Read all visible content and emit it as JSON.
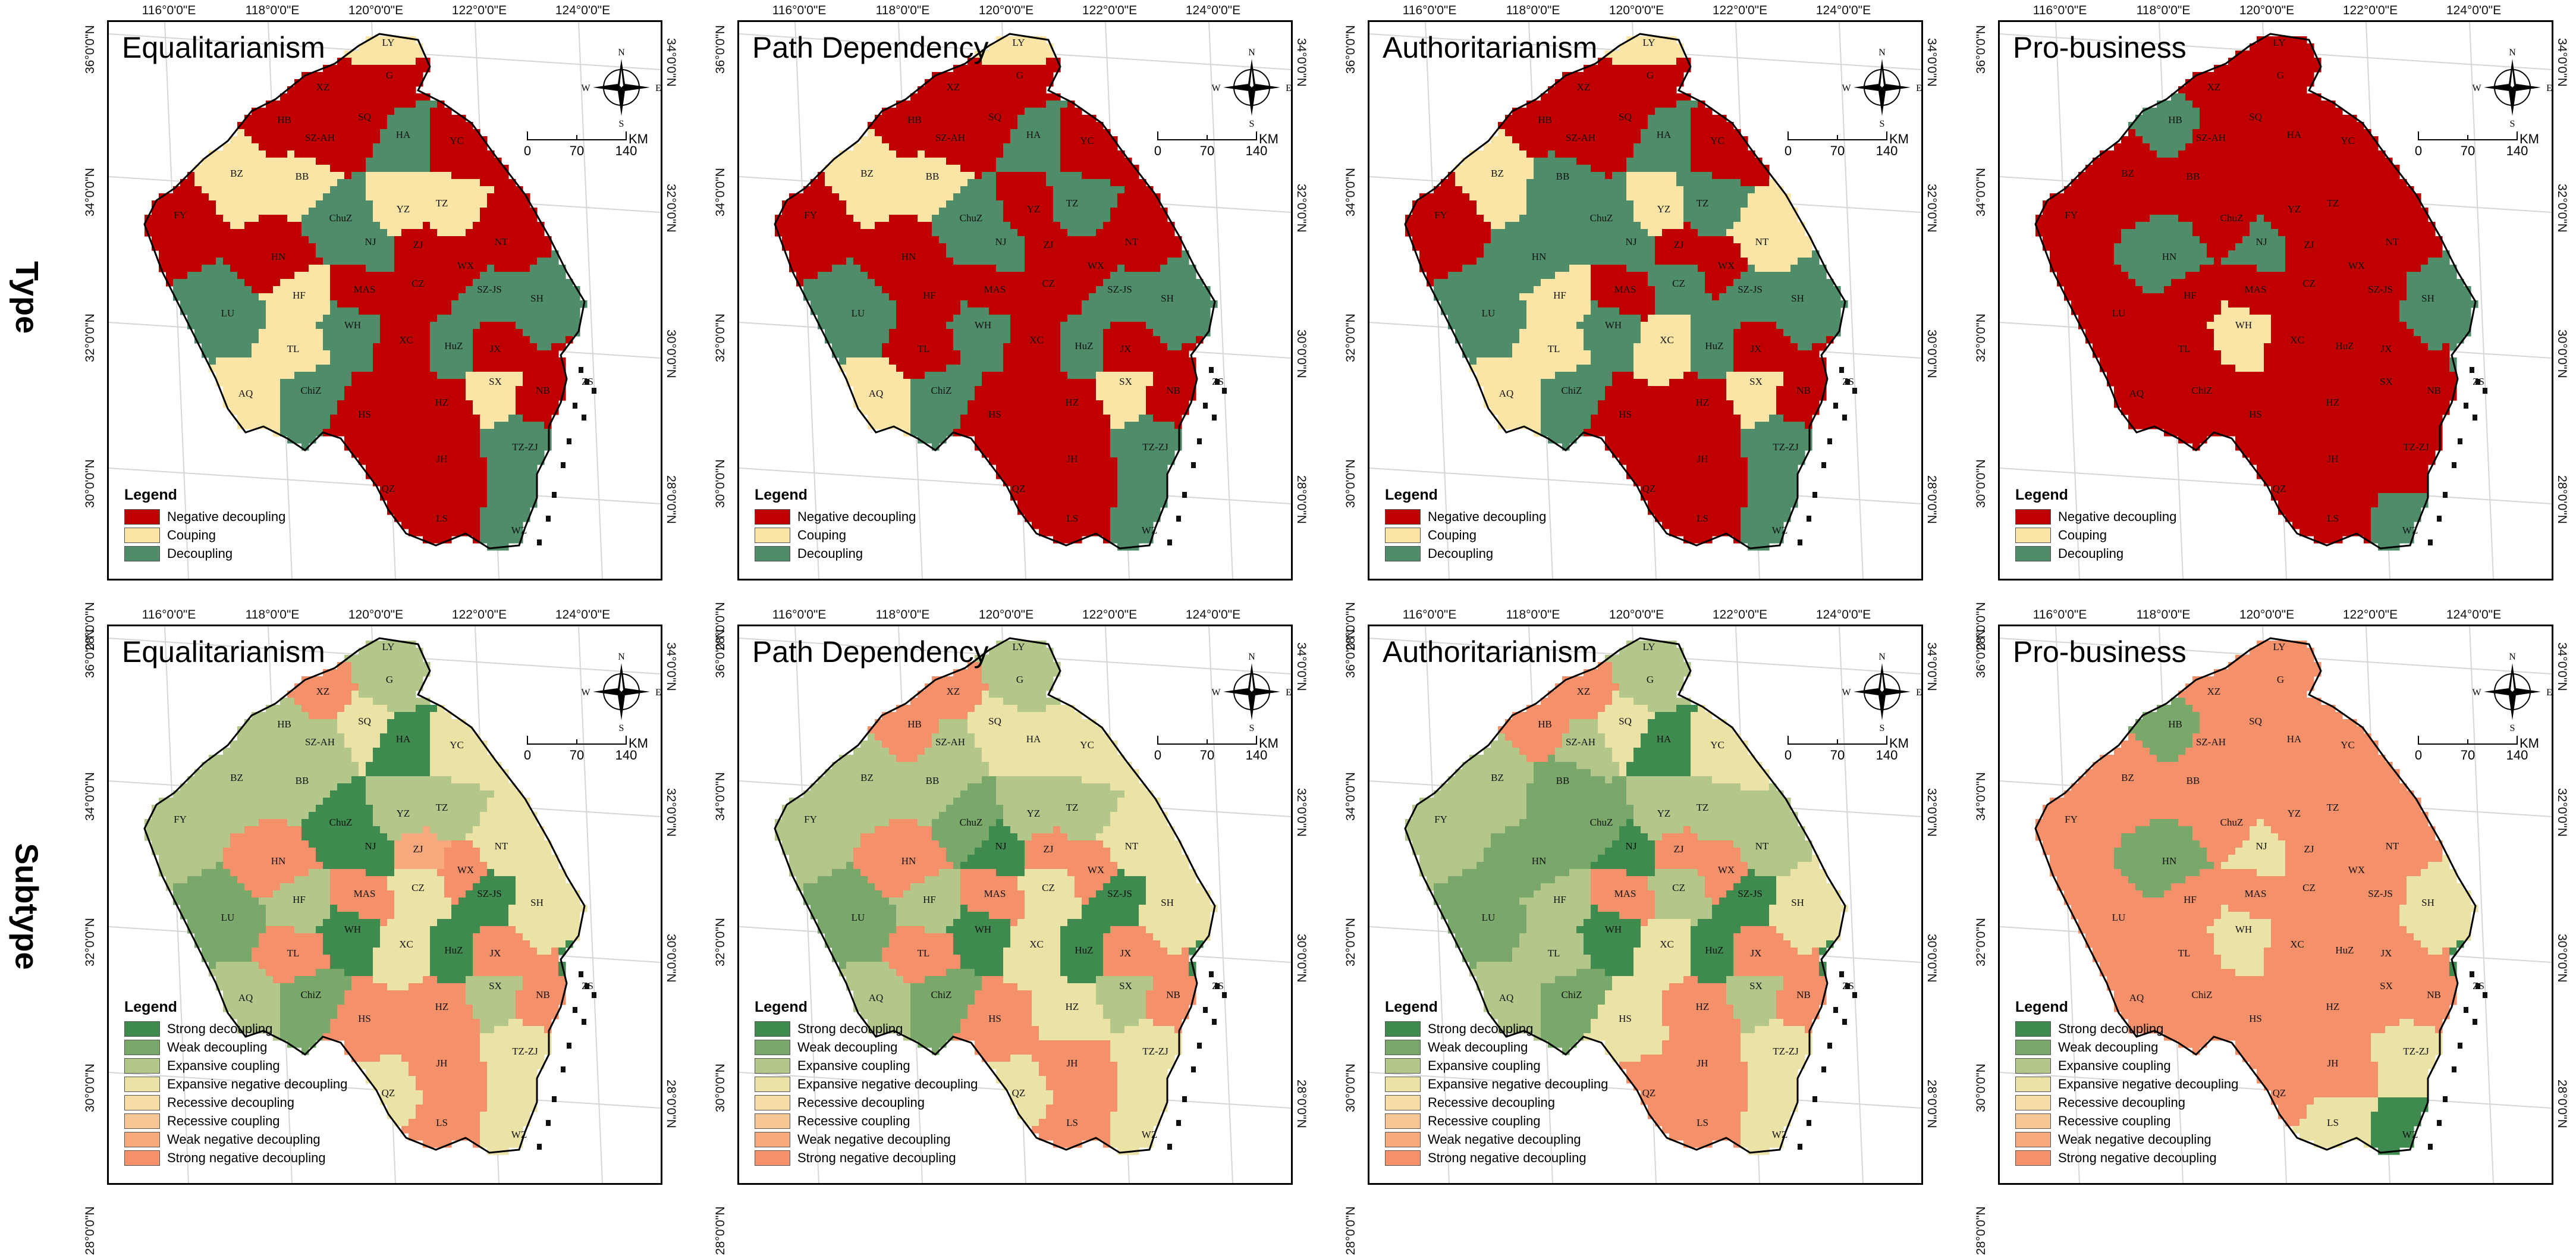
{
  "rows": [
    {
      "label": "Type",
      "legend": {
        "title": "Legend",
        "items": [
          {
            "label": "Negative decoupling",
            "color": "#c00000"
          },
          {
            "label": "Couping",
            "color": "#fbe5a6"
          },
          {
            "label": "Decoupling",
            "color": "#4e8c6a"
          }
        ]
      }
    },
    {
      "label": "Subtype",
      "legend": {
        "title": "Legend",
        "items": [
          {
            "label": "Strong decoupling",
            "color": "#3f8a4f"
          },
          {
            "label": "Weak decoupling",
            "color": "#79a86a"
          },
          {
            "label": "Expansive coupling",
            "color": "#b3c78b"
          },
          {
            "label": "Expansive negative decoupling",
            "color": "#ebe3a6"
          },
          {
            "label": "Recessive decoupling",
            "color": "#f8dca6"
          },
          {
            "label": "Recessive coupling",
            "color": "#f8c595"
          },
          {
            "label": "Weak negative decoupling",
            "color": "#f7a87c"
          },
          {
            "label": "Strong negative decoupling",
            "color": "#f4906a"
          }
        ]
      }
    }
  ],
  "scenarios": [
    "Equalitarianism",
    "Path Dependency",
    "Authoritarianism",
    "Pro-business"
  ],
  "lon_ticks": [
    "116°0'0\"E",
    "118°0'0\"E",
    "120°0'0\"E",
    "122°0'0\"E",
    "124°0'0\"E"
  ],
  "lat_ticks_left": [
    "36°0'0\"N",
    "34°0'0\"N",
    "32°0'0\"N",
    "30°0'0\"N",
    "28°0'0\"N"
  ],
  "lat_ticks_right": [
    "34°0'0\"N",
    "32°0'0\"N",
    "30°0'0\"N",
    "28°0'0\"N"
  ],
  "compass": {
    "n": "N",
    "s": "S",
    "e": "E",
    "w": "W"
  },
  "scalebar": {
    "labels": [
      "0",
      "70",
      "140"
    ],
    "unit": "KM"
  },
  "cities": [
    "LY",
    "G",
    "XZ",
    "SQ",
    "HA",
    "YC",
    "HB",
    "SZ-AH",
    "BZ",
    "BB",
    "FY",
    "ChuZ",
    "YZ",
    "TZ",
    "NT",
    "HN",
    "NJ",
    "ZJ",
    "WX",
    "SZ-JS",
    "HF",
    "MAS",
    "CZ",
    "SH",
    "LU",
    "WH",
    "XC",
    "HuZ",
    "JX",
    "TL",
    "ZS",
    "AQ",
    "ChiZ",
    "HS",
    "HZ",
    "SX",
    "NB",
    "JH",
    "TZ-ZJ",
    "QZ",
    "LS",
    "WZ"
  ],
  "colors": {
    "ocean_island": "#111111",
    "boundary": "#555555",
    "province_boundary": "#000000",
    "frame": "#000000"
  },
  "maps": {
    "type": [
      {
        "LY": "C",
        "G": "N",
        "XZ": "N",
        "SQ": "N",
        "HA": "D",
        "YC": "N",
        "HB": "N",
        "SZ-AH": "N",
        "BZ": "C",
        "BB": "C",
        "FY": "N",
        "ChuZ": "D",
        "YZ": "C",
        "TZ": "C",
        "NT": "N",
        "HN": "N",
        "NJ": "D",
        "ZJ": "N",
        "WX": "N",
        "SZ-JS": "D",
        "HF": "C",
        "MAS": "N",
        "CZ": "N",
        "SH": "D",
        "LU": "D",
        "WH": "D",
        "XC": "N",
        "HuZ": "D",
        "JX": "N",
        "TL": "C",
        "ZS": "N",
        "AQ": "C",
        "ChiZ": "D",
        "HS": "N",
        "HZ": "N",
        "SX": "C",
        "NB": "N",
        "JH": "N",
        "TZ-ZJ": "D",
        "QZ": "N",
        "LS": "N",
        "WZ": "D"
      },
      {
        "LY": "C",
        "G": "N",
        "XZ": "N",
        "SQ": "N",
        "HA": "D",
        "YC": "N",
        "HB": "N",
        "SZ-AH": "N",
        "BZ": "C",
        "BB": "C",
        "FY": "N",
        "ChuZ": "D",
        "YZ": "N",
        "TZ": "D",
        "NT": "N",
        "HN": "N",
        "NJ": "D",
        "ZJ": "N",
        "WX": "N",
        "SZ-JS": "D",
        "HF": "N",
        "MAS": "N",
        "CZ": "N",
        "SH": "D",
        "LU": "D",
        "WH": "D",
        "XC": "N",
        "HuZ": "D",
        "JX": "N",
        "TL": "N",
        "ZS": "N",
        "AQ": "C",
        "ChiZ": "D",
        "HS": "N",
        "HZ": "N",
        "SX": "C",
        "NB": "N",
        "JH": "N",
        "TZ-ZJ": "D",
        "QZ": "N",
        "LS": "N",
        "WZ": "D"
      },
      {
        "LY": "C",
        "G": "N",
        "XZ": "N",
        "SQ": "N",
        "HA": "D",
        "YC": "N",
        "HB": "N",
        "SZ-AH": "N",
        "BZ": "C",
        "BB": "D",
        "FY": "N",
        "ChuZ": "D",
        "YZ": "C",
        "TZ": "D",
        "NT": "C",
        "HN": "D",
        "NJ": "D",
        "ZJ": "N",
        "WX": "N",
        "SZ-JS": "D",
        "HF": "C",
        "MAS": "N",
        "CZ": "D",
        "SH": "D",
        "LU": "D",
        "WH": "D",
        "XC": "C",
        "HuZ": "D",
        "JX": "N",
        "TL": "C",
        "ZS": "N",
        "AQ": "C",
        "ChiZ": "D",
        "HS": "N",
        "HZ": "N",
        "SX": "C",
        "NB": "N",
        "JH": "N",
        "TZ-ZJ": "D",
        "QZ": "N",
        "LS": "N",
        "WZ": "D"
      },
      {
        "LY": "N",
        "G": "N",
        "XZ": "N",
        "SQ": "N",
        "HA": "N",
        "YC": "N",
        "HB": "D",
        "SZ-AH": "N",
        "BZ": "N",
        "BB": "N",
        "FY": "N",
        "ChuZ": "N",
        "YZ": "N",
        "TZ": "N",
        "NT": "N",
        "HN": "D",
        "NJ": "D",
        "ZJ": "N",
        "WX": "N",
        "SZ-JS": "N",
        "HF": "N",
        "MAS": "N",
        "CZ": "N",
        "SH": "D",
        "LU": "N",
        "WH": "C",
        "XC": "N",
        "HuZ": "N",
        "JX": "N",
        "TL": "N",
        "ZS": "D",
        "AQ": "N",
        "ChiZ": "N",
        "HS": "N",
        "HZ": "N",
        "SX": "N",
        "NB": "N",
        "JH": "N",
        "TZ-ZJ": "N",
        "QZ": "N",
        "LS": "N",
        "WZ": "D"
      }
    ],
    "subtype": [
      {
        "LY": "EC",
        "G": "EC",
        "XZ": "SND",
        "SQ": "END",
        "HA": "SD",
        "YC": "END",
        "HB": "EC",
        "SZ-AH": "EC",
        "BZ": "EC",
        "BB": "EC",
        "FY": "EC",
        "ChuZ": "SD",
        "YZ": "EC",
        "TZ": "EC",
        "NT": "END",
        "HN": "SND",
        "NJ": "SD",
        "ZJ": "WND",
        "WX": "SND",
        "SZ-JS": "SD",
        "HF": "EC",
        "MAS": "SND",
        "CZ": "END",
        "SH": "END",
        "LU": "WD",
        "WH": "SD",
        "XC": "END",
        "HuZ": "SD",
        "JX": "SND",
        "TL": "SND",
        "ZS": "SD",
        "AQ": "EC",
        "ChiZ": "WD",
        "HS": "SND",
        "HZ": "SND",
        "SX": "EC",
        "NB": "SND",
        "JH": "SND",
        "TZ-ZJ": "END",
        "QZ": "END",
        "LS": "SND",
        "WZ": "END"
      },
      {
        "LY": "EC",
        "G": "EC",
        "XZ": "SND",
        "SQ": "END",
        "HA": "END",
        "YC": "END",
        "HB": "SND",
        "SZ-AH": "EC",
        "BZ": "EC",
        "BB": "EC",
        "FY": "EC",
        "ChuZ": "WD",
        "YZ": "EC",
        "TZ": "EC",
        "NT": "END",
        "HN": "SND",
        "NJ": "SD",
        "ZJ": "SND",
        "WX": "SND",
        "SZ-JS": "SD",
        "HF": "EC",
        "MAS": "SND",
        "CZ": "END",
        "SH": "END",
        "LU": "WD",
        "WH": "SD",
        "XC": "END",
        "HuZ": "SD",
        "JX": "SND",
        "TL": "SND",
        "ZS": "SD",
        "AQ": "EC",
        "ChiZ": "WD",
        "HS": "SND",
        "HZ": "END",
        "SX": "EC",
        "NB": "SND",
        "JH": "SND",
        "TZ-ZJ": "END",
        "QZ": "END",
        "LS": "SND",
        "WZ": "END"
      },
      {
        "LY": "EC",
        "G": "EC",
        "XZ": "SND",
        "SQ": "END",
        "HA": "SD",
        "YC": "END",
        "HB": "SND",
        "SZ-AH": "EC",
        "BZ": "EC",
        "BB": "WD",
        "FY": "EC",
        "ChuZ": "WD",
        "YZ": "EC",
        "TZ": "EC",
        "NT": "EC",
        "HN": "WD",
        "NJ": "SD",
        "ZJ": "SND",
        "WX": "SND",
        "SZ-JS": "SD",
        "HF": "EC",
        "MAS": "SND",
        "CZ": "EC",
        "SH": "END",
        "LU": "WD",
        "WH": "SD",
        "XC": "END",
        "HuZ": "SD",
        "JX": "SND",
        "TL": "EC",
        "ZS": "SD",
        "AQ": "EC",
        "ChiZ": "WD",
        "HS": "END",
        "HZ": "SND",
        "SX": "EC",
        "NB": "SND",
        "JH": "SND",
        "TZ-ZJ": "END",
        "QZ": "SND",
        "LS": "SND",
        "WZ": "END"
      },
      {
        "LY": "SND",
        "G": "SND",
        "XZ": "SND",
        "SQ": "SND",
        "HA": "SND",
        "YC": "SND",
        "HB": "WD",
        "SZ-AH": "SND",
        "BZ": "SND",
        "BB": "SND",
        "FY": "SND",
        "ChuZ": "SND",
        "YZ": "SND",
        "TZ": "SND",
        "NT": "SND",
        "HN": "WD",
        "NJ": "END",
        "ZJ": "SND",
        "WX": "SND",
        "SZ-JS": "SND",
        "HF": "SND",
        "MAS": "SND",
        "CZ": "SND",
        "SH": "END",
        "LU": "SND",
        "WH": "END",
        "XC": "SND",
        "HuZ": "SND",
        "JX": "SND",
        "TL": "SND",
        "ZS": "SD",
        "AQ": "SND",
        "ChiZ": "SND",
        "HS": "SND",
        "HZ": "SND",
        "SX": "SND",
        "NB": "SND",
        "JH": "SND",
        "TZ-ZJ": "END",
        "QZ": "SND",
        "LS": "END",
        "WZ": "SD"
      }
    ]
  },
  "category_colors": {
    "N": "#c00000",
    "C": "#fbe5a6",
    "D": "#4e8c6a",
    "SD": "#3f8a4f",
    "WD": "#79a86a",
    "EC": "#b3c78b",
    "END": "#ebe3a6",
    "RD": "#f8dca6",
    "RC": "#f8c595",
    "WND": "#f7a87c",
    "SND": "#f4906a"
  }
}
